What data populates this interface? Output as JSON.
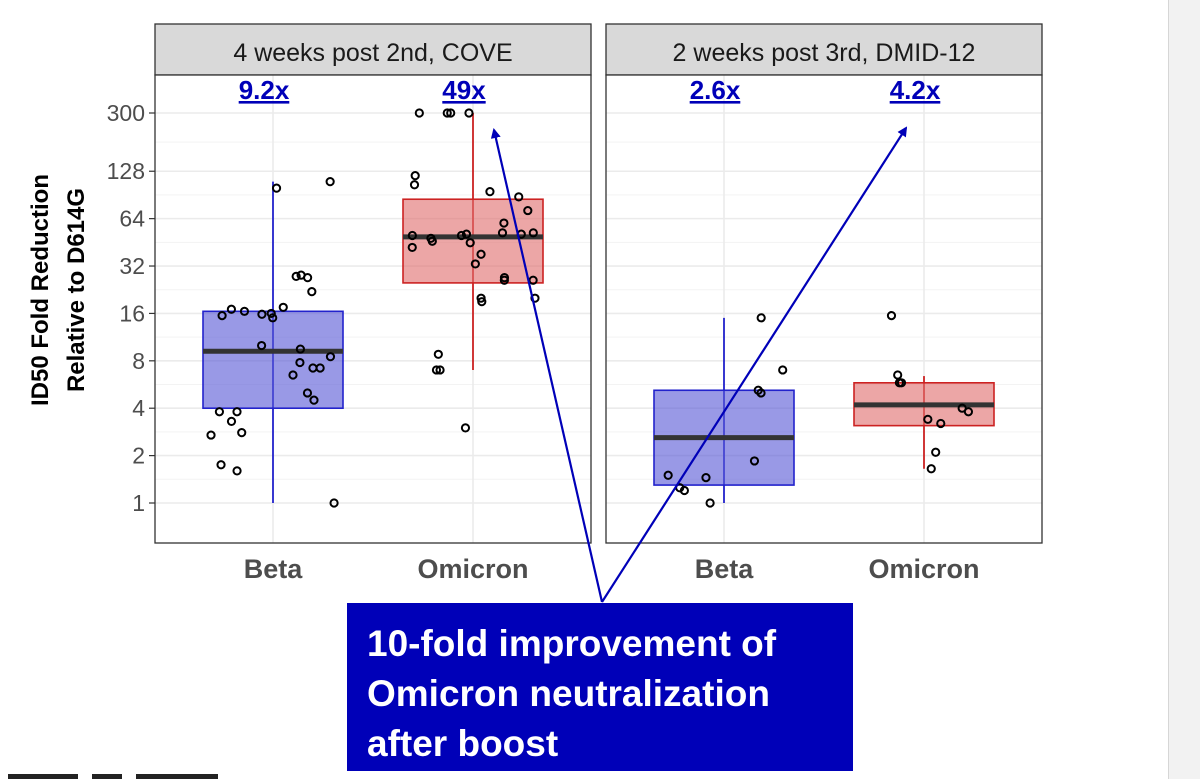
{
  "chart_data": {
    "type": "box",
    "ylabel": [
      "ID50 Fold Reduction",
      "Relative to D614G"
    ],
    "yscale": "log2",
    "yticks": [
      1,
      2,
      4,
      8,
      16,
      32,
      64,
      128,
      300
    ],
    "ylim": [
      0.72,
      420
    ],
    "categories": [
      "Beta",
      "Omicron"
    ],
    "panels": [
      {
        "title": "4 weeks post 2nd, COVE",
        "boxes": [
          {
            "category": "Beta",
            "color": "#5b5bd6",
            "edge": "#2222cc",
            "whisker_low": 1,
            "q1": 4,
            "median": 9.2,
            "q3": 16.5,
            "whisker_high": 110,
            "label": "9.2x",
            "points": [
              110,
              100,
              27,
              27.5,
              28,
              22,
              17.5,
              17,
              16.5,
              16,
              15.8,
              15.5,
              15,
              10,
              9.5,
              8.5,
              7.8,
              7.2,
              6.5,
              7.2,
              5,
              4.5,
              3.8,
              3.8,
              3.3,
              2.8,
              2.7,
              1.75,
              1.6,
              1
            ]
          },
          {
            "category": "Omicron",
            "color": "#e07070",
            "edge": "#cc2222",
            "whisker_low": 7,
            "q1": 25,
            "median": 49,
            "q3": 85,
            "whisker_high": 300,
            "label": "49x",
            "points": [
              300,
              300,
              300,
              300,
              120,
              105,
              95,
              88,
              72,
              60,
              52,
              52,
              51,
              51,
              50,
              50,
              48,
              46,
              45,
              42,
              38,
              33,
              27,
              26,
              26,
              20,
              20,
              19,
              8.8,
              7,
              7,
              3
            ]
          }
        ]
      },
      {
        "title": "2 weeks post 3rd, DMID-12",
        "boxes": [
          {
            "category": "Beta",
            "color": "#5b5bd6",
            "edge": "#2222cc",
            "whisker_low": 1,
            "q1": 1.3,
            "median": 2.6,
            "q3": 5.2,
            "whisker_high": 15,
            "label": "2.6x",
            "points": [
              15,
              7,
              5.2,
              5,
              1.85,
              1.5,
              1.45,
              1.25,
              1.2,
              1
            ]
          },
          {
            "category": "Omicron",
            "color": "#e07070",
            "edge": "#cc2222",
            "whisker_low": 1.65,
            "q1": 3.1,
            "median": 4.2,
            "q3": 5.8,
            "whisker_high": 6.4,
            "label": "4.2x",
            "points": [
              15.5,
              6.5,
              5.8,
              5.8,
              4,
              3.8,
              3.4,
              3.2,
              2.1,
              1.65
            ]
          }
        ]
      }
    ],
    "annotation": {
      "lines": [
        "10-fold improvement of",
        "Omicron neutralization",
        "after boost"
      ]
    }
  },
  "colors": {
    "panel_bg": "#ffffff",
    "strip_bg": "#d9d9d9",
    "grid": "#ebebeb",
    "label_blue": "#0000b8",
    "median": "#333333",
    "arrow": "#0000b8"
  }
}
